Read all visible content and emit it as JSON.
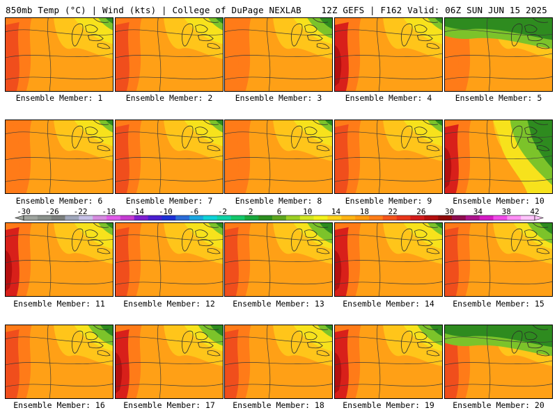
{
  "header": {
    "left": "850mb Temp (°C) | Wind (kts) | College of DuPage NEXLAB",
    "right": "12Z GEFS | F162 Valid: 06Z SUN JUN 15 2025"
  },
  "members": [
    {
      "label": "Ensemble Member: 1",
      "pattern": "warm-west",
      "cool": "light"
    },
    {
      "label": "Ensemble Member: 2",
      "pattern": "warm-west",
      "cool": "light"
    },
    {
      "label": "Ensemble Member: 3",
      "pattern": "mild",
      "cool": "medium"
    },
    {
      "label": "Ensemble Member: 4",
      "pattern": "hot-west",
      "cool": "light"
    },
    {
      "label": "Ensemble Member: 5",
      "pattern": "mild",
      "cool": "strong-north"
    },
    {
      "label": "Ensemble Member: 6",
      "pattern": "mild",
      "cool": "light"
    },
    {
      "label": "Ensemble Member: 7",
      "pattern": "warm-west",
      "cool": "light"
    },
    {
      "label": "Ensemble Member: 8",
      "pattern": "mild",
      "cool": "light"
    },
    {
      "label": "Ensemble Member: 9",
      "pattern": "warm-west",
      "cool": "light"
    },
    {
      "label": "Ensemble Member: 10",
      "pattern": "hot-west",
      "cool": "strong-east"
    },
    {
      "label": "Ensemble Member: 11",
      "pattern": "hot-west",
      "cool": "light"
    },
    {
      "label": "Ensemble Member: 12",
      "pattern": "warm-west",
      "cool": "light"
    },
    {
      "label": "Ensemble Member: 13",
      "pattern": "warm-west",
      "cool": "medium"
    },
    {
      "label": "Ensemble Member: 14",
      "pattern": "hot-west",
      "cool": "light"
    },
    {
      "label": "Ensemble Member: 15",
      "pattern": "warm-west",
      "cool": "medium"
    },
    {
      "label": "Ensemble Member: 16",
      "pattern": "warm-west",
      "cool": "medium"
    },
    {
      "label": "Ensemble Member: 17",
      "pattern": "hot-west",
      "cool": "medium"
    },
    {
      "label": "Ensemble Member: 18",
      "pattern": "warm-west",
      "cool": "light"
    },
    {
      "label": "Ensemble Member: 19",
      "pattern": "hot-west",
      "cool": "medium"
    },
    {
      "label": "Ensemble Member: 20",
      "pattern": "warm-west",
      "cool": "strong-north"
    }
  ],
  "colorbar": {
    "ticks": [
      "-30",
      "-26",
      "-22",
      "-18",
      "-14",
      "-10",
      "-6",
      "-2",
      "2",
      "6",
      "10",
      "14",
      "18",
      "22",
      "26",
      "30",
      "34",
      "38",
      "42"
    ],
    "colors": [
      "#9ea49e",
      "#8a918b",
      "#7b7f7d",
      "#a0a7bb",
      "#c7c2e8",
      "#d68ce0",
      "#e05ce9",
      "#c43cd2",
      "#7e1ed0",
      "#4a1fcf",
      "#1c30d6",
      "#2b6cd8",
      "#1aa6e0",
      "#0fd2d8",
      "#10d3a6",
      "#14c76a",
      "#18a83d",
      "#2c8e1f",
      "#5ea61f",
      "#9bcf24",
      "#d3e623",
      "#f3f21d",
      "#ffd31d",
      "#ffb414",
      "#ff9b10",
      "#ff7d18",
      "#f4551c",
      "#e8361b",
      "#d21c1c",
      "#b40f0f",
      "#8f0a0a",
      "#8d0d4f",
      "#ad148c",
      "#d41bc4",
      "#f04be8",
      "#ff8ef5",
      "#ffc4fb"
    ],
    "palette": {
      "cool_green": "#2e8b1f",
      "cool_lightgreen": "#7cc32a",
      "yellow": "#f7e21c",
      "gold": "#ffc51a",
      "orange": "#ffa016",
      "deep_orange": "#ff7b18",
      "red_orange": "#f04e1c",
      "red": "#d8201a"
    }
  }
}
